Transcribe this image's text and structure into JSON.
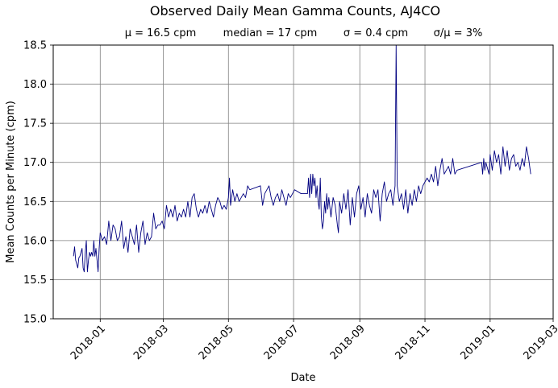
{
  "chart_data": {
    "type": "line",
    "title": "Observed Daily Mean Gamma Counts, AJ4CO",
    "subtitle": {
      "mean": "μ = 16.5 cpm",
      "median": "median = 17 cpm",
      "sigma": "σ = 0.4 cpm",
      "cv": "σ/μ = 3%"
    },
    "xlabel": "Date",
    "ylabel": "Mean Counts per Minute (cpm)",
    "x_range": [
      "2017-11-18",
      "2019-03-01"
    ],
    "ylim": [
      15.0,
      18.5
    ],
    "x_ticks": [
      "2018-01",
      "2018-03",
      "2018-05",
      "2018-07",
      "2018-09",
      "2018-11",
      "2019-01",
      "2019-03"
    ],
    "y_ticks": [
      "15.0",
      "15.5",
      "16.0",
      "16.5",
      "17.0",
      "17.5",
      "18.0",
      "18.5"
    ],
    "grid": true,
    "color": "#000080",
    "series": [
      {
        "points": [
          [
            "2017-12-07",
            15.8
          ],
          [
            "2017-12-08",
            15.92
          ],
          [
            "2017-12-09",
            15.75
          ],
          [
            "2017-12-10",
            15.7
          ],
          [
            "2017-12-11",
            15.65
          ],
          [
            "2017-12-12",
            15.78
          ],
          [
            "2017-12-13",
            15.8
          ],
          [
            "2017-12-14",
            15.85
          ],
          [
            "2017-12-15",
            15.9
          ],
          [
            "2017-12-16",
            15.65
          ],
          [
            "2017-12-17",
            15.6
          ],
          [
            "2017-12-18",
            15.85
          ],
          [
            "2017-12-19",
            16.0
          ],
          [
            "2017-12-20",
            15.6
          ],
          [
            "2017-12-21",
            15.75
          ],
          [
            "2017-12-22",
            15.85
          ],
          [
            "2017-12-23",
            15.8
          ],
          [
            "2017-12-24",
            15.85
          ],
          [
            "2017-12-25",
            15.8
          ],
          [
            "2017-12-26",
            16.0
          ],
          [
            "2017-12-27",
            15.8
          ],
          [
            "2017-12-28",
            15.9
          ],
          [
            "2017-12-29",
            15.75
          ],
          [
            "2017-12-30",
            15.6
          ],
          [
            "2017-12-31",
            15.9
          ],
          [
            "2018-01-01",
            16.1
          ],
          [
            "2018-01-03",
            16.0
          ],
          [
            "2018-01-05",
            16.05
          ],
          [
            "2018-01-07",
            15.95
          ],
          [
            "2018-01-09",
            16.25
          ],
          [
            "2018-01-11",
            16.0
          ],
          [
            "2018-01-13",
            16.2
          ],
          [
            "2018-01-15",
            16.15
          ],
          [
            "2018-01-17",
            16.0
          ],
          [
            "2018-01-19",
            16.05
          ],
          [
            "2018-01-21",
            16.25
          ],
          [
            "2018-01-23",
            15.9
          ],
          [
            "2018-01-25",
            16.05
          ],
          [
            "2018-01-27",
            15.85
          ],
          [
            "2018-01-29",
            16.15
          ],
          [
            "2018-01-31",
            16.05
          ],
          [
            "2018-02-02",
            15.95
          ],
          [
            "2018-02-04",
            16.2
          ],
          [
            "2018-02-06",
            15.85
          ],
          [
            "2018-02-08",
            16.1
          ],
          [
            "2018-02-10",
            16.25
          ],
          [
            "2018-02-12",
            15.95
          ],
          [
            "2018-02-14",
            16.1
          ],
          [
            "2018-02-16",
            16.0
          ],
          [
            "2018-02-18",
            16.05
          ],
          [
            "2018-02-20",
            16.35
          ],
          [
            "2018-02-22",
            16.15
          ],
          [
            "2018-02-24",
            16.2
          ],
          [
            "2018-02-26",
            16.2
          ],
          [
            "2018-02-28",
            16.25
          ],
          [
            "2018-03-02",
            16.15
          ],
          [
            "2018-03-04",
            16.45
          ],
          [
            "2018-03-06",
            16.3
          ],
          [
            "2018-03-08",
            16.4
          ],
          [
            "2018-03-10",
            16.3
          ],
          [
            "2018-03-12",
            16.45
          ],
          [
            "2018-03-14",
            16.25
          ],
          [
            "2018-03-16",
            16.35
          ],
          [
            "2018-03-18",
            16.3
          ],
          [
            "2018-03-20",
            16.4
          ],
          [
            "2018-03-22",
            16.3
          ],
          [
            "2018-03-24",
            16.5
          ],
          [
            "2018-03-26",
            16.3
          ],
          [
            "2018-03-28",
            16.55
          ],
          [
            "2018-03-30",
            16.6
          ],
          [
            "2018-04-01",
            16.4
          ],
          [
            "2018-04-03",
            16.3
          ],
          [
            "2018-04-05",
            16.4
          ],
          [
            "2018-04-07",
            16.35
          ],
          [
            "2018-04-09",
            16.45
          ],
          [
            "2018-04-11",
            16.35
          ],
          [
            "2018-04-13",
            16.5
          ],
          [
            "2018-04-15",
            16.4
          ],
          [
            "2018-04-17",
            16.3
          ],
          [
            "2018-04-19",
            16.45
          ],
          [
            "2018-04-21",
            16.55
          ],
          [
            "2018-04-23",
            16.5
          ],
          [
            "2018-04-25",
            16.4
          ],
          [
            "2018-04-27",
            16.45
          ],
          [
            "2018-04-29",
            16.4
          ],
          [
            "2018-05-01",
            16.55
          ],
          [
            "2018-05-02",
            16.8
          ],
          [
            "2018-05-03",
            16.45
          ],
          [
            "2018-05-05",
            16.65
          ],
          [
            "2018-05-07",
            16.5
          ],
          [
            "2018-05-09",
            16.6
          ],
          [
            "2018-05-11",
            16.5
          ],
          [
            "2018-05-13",
            16.55
          ],
          [
            "2018-05-15",
            16.6
          ],
          [
            "2018-05-17",
            16.55
          ],
          [
            "2018-05-19",
            16.7
          ],
          [
            "2018-05-21",
            16.65
          ],
          [
            "2018-05-31",
            16.7
          ],
          [
            "2018-06-02",
            16.45
          ],
          [
            "2018-06-04",
            16.6
          ],
          [
            "2018-06-06",
            16.65
          ],
          [
            "2018-06-08",
            16.7
          ],
          [
            "2018-06-10",
            16.55
          ],
          [
            "2018-06-12",
            16.45
          ],
          [
            "2018-06-14",
            16.55
          ],
          [
            "2018-06-16",
            16.6
          ],
          [
            "2018-06-18",
            16.5
          ],
          [
            "2018-06-20",
            16.65
          ],
          [
            "2018-06-22",
            16.55
          ],
          [
            "2018-06-24",
            16.45
          ],
          [
            "2018-06-26",
            16.6
          ],
          [
            "2018-06-28",
            16.55
          ],
          [
            "2018-06-30",
            16.6
          ],
          [
            "2018-07-02",
            16.65
          ],
          [
            "2018-07-08",
            16.6
          ],
          [
            "2018-07-14",
            16.6
          ],
          [
            "2018-07-15",
            16.8
          ],
          [
            "2018-07-16",
            16.55
          ],
          [
            "2018-07-17",
            16.85
          ],
          [
            "2018-07-18",
            16.6
          ],
          [
            "2018-07-19",
            16.85
          ],
          [
            "2018-07-20",
            16.7
          ],
          [
            "2018-07-21",
            16.8
          ],
          [
            "2018-07-22",
            16.55
          ],
          [
            "2018-07-23",
            16.7
          ],
          [
            "2018-07-24",
            16.5
          ],
          [
            "2018-07-25",
            16.4
          ],
          [
            "2018-07-26",
            16.8
          ],
          [
            "2018-07-27",
            16.3
          ],
          [
            "2018-07-28",
            16.15
          ],
          [
            "2018-07-29",
            16.25
          ],
          [
            "2018-07-30",
            16.5
          ],
          [
            "2018-07-31",
            16.35
          ],
          [
            "2018-08-01",
            16.6
          ],
          [
            "2018-08-02",
            16.4
          ],
          [
            "2018-08-03",
            16.55
          ],
          [
            "2018-08-05",
            16.3
          ],
          [
            "2018-08-07",
            16.55
          ],
          [
            "2018-08-09",
            16.45
          ],
          [
            "2018-08-11",
            16.2
          ],
          [
            "2018-08-12",
            16.1
          ],
          [
            "2018-08-13",
            16.5
          ],
          [
            "2018-08-15",
            16.35
          ],
          [
            "2018-08-17",
            16.6
          ],
          [
            "2018-08-19",
            16.4
          ],
          [
            "2018-08-21",
            16.65
          ],
          [
            "2018-08-23",
            16.2
          ],
          [
            "2018-08-25",
            16.55
          ],
          [
            "2018-08-27",
            16.3
          ],
          [
            "2018-08-29",
            16.6
          ],
          [
            "2018-08-31",
            16.7
          ],
          [
            "2018-09-02",
            16.4
          ],
          [
            "2018-09-04",
            16.55
          ],
          [
            "2018-09-06",
            16.3
          ],
          [
            "2018-09-08",
            16.6
          ],
          [
            "2018-09-10",
            16.45
          ],
          [
            "2018-09-12",
            16.35
          ],
          [
            "2018-09-14",
            16.65
          ],
          [
            "2018-09-16",
            16.55
          ],
          [
            "2018-09-18",
            16.65
          ],
          [
            "2018-09-20",
            16.25
          ],
          [
            "2018-09-22",
            16.6
          ],
          [
            "2018-09-24",
            16.75
          ],
          [
            "2018-09-26",
            16.5
          ],
          [
            "2018-09-28",
            16.6
          ],
          [
            "2018-09-30",
            16.65
          ],
          [
            "2018-10-02",
            16.45
          ],
          [
            "2018-10-04",
            16.7
          ],
          [
            "2018-10-05",
            18.5
          ],
          [
            "2018-10-06",
            16.7
          ],
          [
            "2018-10-08",
            16.5
          ],
          [
            "2018-10-10",
            16.6
          ],
          [
            "2018-10-12",
            16.4
          ],
          [
            "2018-10-14",
            16.65
          ],
          [
            "2018-10-16",
            16.35
          ],
          [
            "2018-10-18",
            16.6
          ],
          [
            "2018-10-20",
            16.45
          ],
          [
            "2018-10-22",
            16.65
          ],
          [
            "2018-10-24",
            16.5
          ],
          [
            "2018-10-26",
            16.7
          ],
          [
            "2018-10-28",
            16.6
          ],
          [
            "2018-10-30",
            16.7
          ],
          [
            "2018-11-01",
            16.75
          ],
          [
            "2018-11-03",
            16.8
          ],
          [
            "2018-11-05",
            16.75
          ],
          [
            "2018-11-07",
            16.85
          ],
          [
            "2018-11-09",
            16.75
          ],
          [
            "2018-11-11",
            16.95
          ],
          [
            "2018-11-13",
            16.7
          ],
          [
            "2018-11-15",
            16.9
          ],
          [
            "2018-11-17",
            17.05
          ],
          [
            "2018-11-19",
            16.85
          ],
          [
            "2018-11-21",
            16.9
          ],
          [
            "2018-11-23",
            16.95
          ],
          [
            "2018-11-25",
            16.85
          ],
          [
            "2018-11-27",
            17.05
          ],
          [
            "2018-11-29",
            16.85
          ],
          [
            "2018-12-01",
            16.9
          ],
          [
            "2018-12-24",
            17.0
          ],
          [
            "2018-12-25",
            16.85
          ],
          [
            "2018-12-26",
            17.05
          ],
          [
            "2018-12-27",
            16.9
          ],
          [
            "2018-12-28",
            17.0
          ],
          [
            "2018-12-29",
            16.95
          ],
          [
            "2018-12-30",
            16.9
          ],
          [
            "2018-12-31",
            16.85
          ],
          [
            "2019-01-01",
            17.1
          ],
          [
            "2019-01-03",
            16.9
          ],
          [
            "2019-01-05",
            17.15
          ],
          [
            "2019-01-07",
            17.0
          ],
          [
            "2019-01-09",
            17.1
          ],
          [
            "2019-01-11",
            16.85
          ],
          [
            "2019-01-13",
            17.2
          ],
          [
            "2019-01-15",
            16.95
          ],
          [
            "2019-01-17",
            17.15
          ],
          [
            "2019-01-19",
            16.9
          ],
          [
            "2019-01-21",
            17.05
          ],
          [
            "2019-01-23",
            17.1
          ],
          [
            "2019-01-25",
            16.95
          ],
          [
            "2019-01-27",
            17.0
          ],
          [
            "2019-01-29",
            16.9
          ],
          [
            "2019-01-31",
            17.05
          ],
          [
            "2019-02-02",
            16.95
          ],
          [
            "2019-02-04",
            17.2
          ],
          [
            "2019-02-06",
            17.05
          ],
          [
            "2019-02-08",
            16.85
          ]
        ]
      }
    ]
  }
}
